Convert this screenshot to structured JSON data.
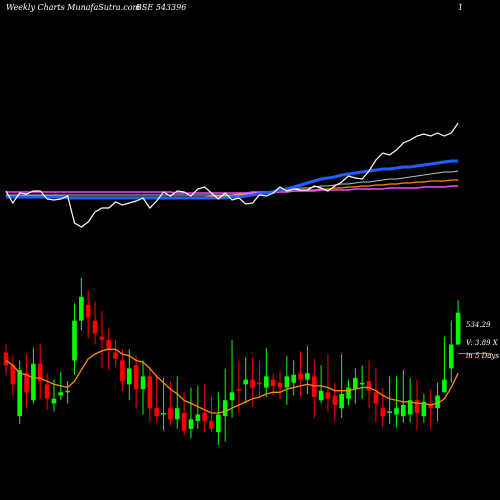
{
  "header": {
    "left": "Weekly Charts",
    "site": "-  MunafaSutra.com",
    "code": "BSE 543396",
    "right": "1"
  },
  "labels": {
    "price": "534.29",
    "volume": "V: 3.89 X",
    "days": "in 5 Days"
  },
  "colors": {
    "up": "#00ff00",
    "down": "#ff0000",
    "ema_short": "#ff8c00",
    "price_line": "#ffffff",
    "ema_blue": "#1f5fff",
    "ema_orange": "#ff8c00",
    "ema_gray": "#c0c0c0",
    "ema_magenta": "#ff44ff",
    "hline": "#ff6a2a"
  },
  "chart_data": [
    {
      "type": "line",
      "name": "upper indicator panel",
      "x": [
        1,
        2,
        3,
        4,
        5,
        6,
        7,
        8,
        9,
        10,
        11,
        12,
        13,
        14,
        15,
        16,
        17,
        18,
        19,
        20,
        21,
        22,
        23,
        24,
        25,
        26,
        27,
        28,
        29,
        30,
        31,
        32,
        33,
        34,
        35,
        36,
        37,
        38,
        39,
        40,
        41,
        42,
        43,
        44,
        45,
        46,
        47,
        48,
        49,
        50,
        51,
        52,
        53,
        54,
        55,
        56,
        57,
        58,
        59,
        60,
        61,
        62,
        63,
        64,
        65,
        66,
        67
      ],
      "series": [
        {
          "key": "price",
          "values": [
            56,
            44,
            54,
            53,
            56,
            56,
            48,
            47,
            48,
            51,
            24,
            20,
            25,
            35,
            39,
            39,
            45,
            42,
            44,
            46,
            49,
            39,
            46,
            55,
            51,
            56,
            55,
            51,
            58,
            60,
            54,
            48,
            54,
            47,
            49,
            43,
            44,
            52,
            51,
            54,
            60,
            56,
            58,
            57,
            57,
            61,
            59,
            56,
            61,
            65,
            71,
            69,
            68,
            76,
            87,
            94,
            92,
            97,
            104,
            107,
            111,
            113,
            111,
            114,
            111,
            114,
            124
          ]
        },
        {
          "key": "ema_blue",
          "values": [
            50,
            50,
            50,
            50,
            50,
            50,
            50,
            50,
            50,
            49,
            49,
            49,
            49,
            49,
            49,
            49,
            49,
            49,
            49,
            49,
            49,
            49,
            49,
            49,
            49,
            49,
            49,
            49,
            49,
            49,
            49,
            49,
            49,
            50,
            50,
            51,
            52,
            53,
            54,
            55,
            57,
            58,
            60,
            62,
            64,
            66,
            68,
            69,
            70,
            72,
            73,
            74,
            75,
            76,
            77,
            78,
            78,
            79,
            80,
            80,
            81,
            82,
            83,
            84,
            85,
            86,
            86
          ]
        },
        {
          "key": "ema_orange",
          "values": [
            50,
            50,
            50,
            50,
            50,
            50,
            50,
            50,
            50,
            50,
            50,
            50,
            50,
            50,
            50,
            50,
            50,
            50,
            50,
            50,
            50,
            50,
            50,
            50,
            50,
            50,
            50,
            50,
            50,
            50,
            51,
            51,
            51,
            51,
            52,
            52,
            53,
            53,
            54,
            54,
            55,
            55,
            56,
            56,
            57,
            57,
            58,
            58,
            59,
            59,
            60,
            60,
            61,
            61,
            62,
            62,
            63,
            63,
            64,
            64,
            65,
            65,
            66,
            66,
            66,
            67,
            67
          ]
        },
        {
          "key": "ema_gray",
          "values": [
            52,
            52,
            52,
            52,
            52,
            52,
            52,
            52,
            52,
            52,
            52,
            52,
            52,
            52,
            52,
            52,
            52,
            52,
            52,
            52,
            52,
            52,
            52,
            52,
            52,
            52,
            52,
            52,
            52,
            52,
            52,
            52,
            52,
            52,
            53,
            53,
            54,
            55,
            55,
            56,
            57,
            57,
            58,
            59,
            59,
            60,
            61,
            61,
            62,
            63,
            63,
            64,
            65,
            65,
            66,
            67,
            68,
            68,
            69,
            70,
            71,
            72,
            73,
            74,
            75,
            75,
            76
          ]
        },
        {
          "key": "ema_magenta",
          "values": [
            55,
            55,
            55,
            55,
            55,
            55,
            55,
            55,
            55,
            55,
            55,
            55,
            55,
            55,
            55,
            55,
            55,
            55,
            55,
            55,
            55,
            55,
            55,
            55,
            55,
            54,
            54,
            54,
            54,
            54,
            54,
            54,
            54,
            54,
            54,
            54,
            55,
            55,
            55,
            55,
            55,
            55,
            56,
            56,
            56,
            56,
            57,
            57,
            57,
            57,
            57,
            58,
            58,
            58,
            58,
            58,
            59,
            59,
            59,
            59,
            59,
            60,
            60,
            60,
            60,
            61,
            61
          ]
        }
      ]
    },
    {
      "type": "candlestick",
      "name": "lower price panel",
      "x": [
        1,
        2,
        3,
        4,
        5,
        6,
        7,
        8,
        9,
        10,
        11,
        12,
        13,
        14,
        15,
        16,
        17,
        18,
        19,
        20,
        21,
        22,
        23,
        24,
        25,
        26,
        27,
        28,
        29,
        30,
        31,
        32,
        33,
        34,
        35,
        36,
        37,
        38,
        39,
        40,
        41,
        42,
        43,
        44,
        45,
        46,
        47,
        48,
        49,
        50,
        51,
        52,
        53,
        54,
        55,
        56,
        57,
        58,
        59,
        60,
        61,
        62,
        63,
        64,
        65,
        66,
        67
      ],
      "open": [
        535,
        527,
        495,
        522,
        505,
        528,
        515,
        503,
        508,
        510,
        530,
        555,
        565,
        555,
        545,
        543,
        535,
        530,
        515,
        527,
        512,
        520,
        500,
        497,
        500,
        493,
        497,
        487,
        492,
        497,
        492,
        485,
        495,
        505,
        512,
        515,
        518,
        516,
        513,
        518,
        516,
        513,
        516,
        522,
        518,
        520,
        505,
        510,
        508,
        500,
        506,
        512,
        515,
        517,
        510,
        500,
        497,
        496,
        495,
        496,
        505,
        495,
        503,
        500,
        510,
        525,
        540
      ],
      "close": [
        527,
        515,
        524,
        510,
        528,
        517,
        506,
        506,
        510,
        511,
        555,
        570,
        557,
        547,
        543,
        537,
        531,
        517,
        525,
        512,
        520,
        500,
        495,
        497,
        493,
        500,
        486,
        493,
        496,
        492,
        487,
        496,
        505,
        510,
        511,
        518,
        513,
        515,
        520,
        514,
        513,
        520,
        521,
        518,
        522,
        507,
        511,
        506,
        502,
        509,
        513,
        519,
        516,
        511,
        503,
        495,
        498,
        500,
        502,
        505,
        497,
        504,
        500,
        508,
        518,
        540,
        560
      ],
      "high": [
        540,
        533,
        530,
        534,
        538,
        540,
        522,
        518,
        523,
        517,
        566,
        582,
        574,
        567,
        561,
        550,
        543,
        537,
        537,
        533,
        530,
        526,
        521,
        519,
        517,
        520,
        510,
        513,
        514,
        515,
        507,
        510,
        525,
        543,
        530,
        532,
        532,
        530,
        538,
        522,
        523,
        533,
        530,
        536,
        539,
        531,
        527,
        534,
        516,
        534,
        518,
        525,
        527,
        530,
        525,
        513,
        520,
        520,
        524,
        519,
        518,
        509,
        512,
        516,
        545,
        555,
        568
      ],
      "low": [
        521,
        508,
        490,
        500,
        503,
        506,
        499,
        498,
        505,
        503,
        521,
        549,
        544,
        540,
        525,
        524,
        526,
        511,
        505,
        500,
        496,
        491,
        491,
        486,
        489,
        487,
        483,
        481,
        487,
        485,
        485,
        477,
        479,
        494,
        497,
        503,
        501,
        507,
        507,
        508,
        506,
        502,
        508,
        507,
        509,
        494,
        503,
        498,
        492,
        494,
        502,
        503,
        506,
        500,
        491,
        488,
        490,
        488,
        491,
        491,
        486,
        491,
        487,
        492,
        510,
        516,
        540
      ],
      "ema": [
        530,
        527,
        522,
        521,
        519,
        519,
        517,
        515,
        514,
        513,
        517,
        524,
        531,
        534,
        536,
        537,
        537,
        534,
        533,
        530,
        529,
        525,
        520,
        516,
        512,
        509,
        505,
        503,
        501,
        499,
        497,
        497,
        498,
        500,
        502,
        504,
        506,
        507,
        509,
        510,
        510,
        512,
        513,
        514,
        515,
        514,
        514,
        513,
        511,
        511,
        511,
        512,
        513,
        513,
        511,
        508,
        506,
        505,
        504,
        504,
        503,
        503,
        502,
        503,
        506,
        513,
        522
      ],
      "last_price": 534.29
    }
  ]
}
